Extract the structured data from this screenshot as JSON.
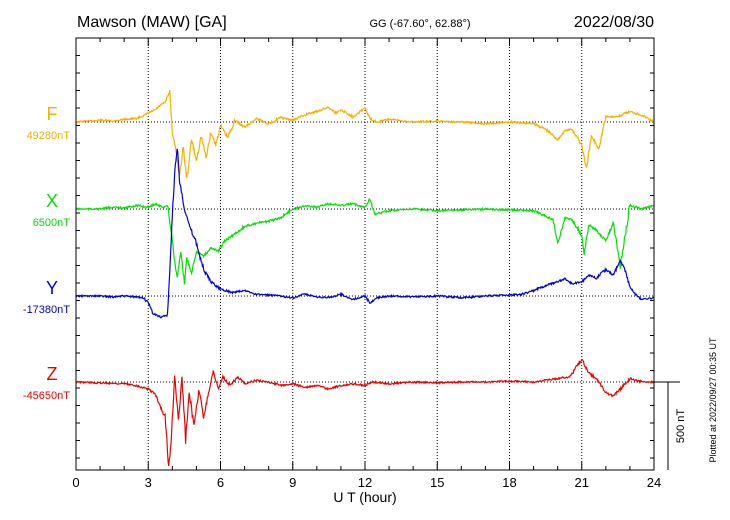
{
  "header": {
    "station": "Mawson (MAW)  [GA]",
    "coords": "GG (-67.60°,  62.88°)",
    "date": "2022/08/30"
  },
  "footer": {
    "plotted": "Plotted at 2022/09/27 00:35 UT"
  },
  "chart_data": {
    "type": "line",
    "xlabel": "U T (hour)",
    "xlim": [
      0,
      24
    ],
    "xticks": [
      "0",
      "3",
      "6",
      "9",
      "12",
      "15",
      "18",
      "21",
      "24"
    ],
    "grid": true,
    "scale_bar": {
      "label": "500 nT",
      "value_nT": 500
    },
    "series": [
      {
        "name": "F",
        "baseline_label": "49280nT",
        "baseline_nT": 49280,
        "color": "#f5b000",
        "points": [
          [
            0,
            0
          ],
          [
            0.5,
            -5
          ],
          [
            1,
            -10
          ],
          [
            1.5,
            -5
          ],
          [
            2,
            -15
          ],
          [
            2.5,
            -20
          ],
          [
            2.8,
            -35
          ],
          [
            3,
            -50
          ],
          [
            3.3,
            -70
          ],
          [
            3.5,
            -95
          ],
          [
            3.7,
            -110
          ],
          [
            3.9,
            -175
          ],
          [
            4.0,
            60
          ],
          [
            4.15,
            160
          ],
          [
            4.3,
            310
          ],
          [
            4.45,
            140
          ],
          [
            4.6,
            330
          ],
          [
            4.8,
            100
          ],
          [
            5.0,
            220
          ],
          [
            5.2,
            80
          ],
          [
            5.4,
            200
          ],
          [
            5.6,
            60
          ],
          [
            5.8,
            130
          ],
          [
            6.0,
            20
          ],
          [
            6.3,
            90
          ],
          [
            6.6,
            -10
          ],
          [
            7,
            30
          ],
          [
            7.5,
            -20
          ],
          [
            8,
            10
          ],
          [
            8.5,
            -25
          ],
          [
            9,
            -10
          ],
          [
            9.5,
            -40
          ],
          [
            10,
            -60
          ],
          [
            10.5,
            -85
          ],
          [
            10.8,
            -50
          ],
          [
            11,
            -70
          ],
          [
            11.5,
            -30
          ],
          [
            12,
            -80
          ],
          [
            12.2,
            -20
          ],
          [
            12.5,
            0
          ],
          [
            13,
            -15
          ],
          [
            14,
            0
          ],
          [
            15,
            -5
          ],
          [
            16,
            0
          ],
          [
            17,
            10
          ],
          [
            18,
            0
          ],
          [
            19,
            10
          ],
          [
            19.5,
            40
          ],
          [
            20,
            100
          ],
          [
            20.3,
            50
          ],
          [
            20.6,
            40
          ],
          [
            21,
            130
          ],
          [
            21.2,
            270
          ],
          [
            21.4,
            80
          ],
          [
            21.7,
            150
          ],
          [
            22,
            -30
          ],
          [
            22.5,
            -30
          ],
          [
            23,
            -60
          ],
          [
            23.5,
            -40
          ],
          [
            24,
            0
          ]
        ]
      },
      {
        "name": "X",
        "baseline_label": "6500nT",
        "baseline_nT": 6500,
        "color": "#00e000",
        "points": [
          [
            0,
            0
          ],
          [
            1,
            0
          ],
          [
            1.5,
            -10
          ],
          [
            2,
            -5
          ],
          [
            2.5,
            -20
          ],
          [
            3,
            -10
          ],
          [
            3.3,
            -30
          ],
          [
            3.6,
            -10
          ],
          [
            3.8,
            -20
          ],
          [
            4.0,
            170
          ],
          [
            4.1,
            300
          ],
          [
            4.2,
            390
          ],
          [
            4.35,
            250
          ],
          [
            4.5,
            420
          ],
          [
            4.6,
            280
          ],
          [
            4.8,
            360
          ],
          [
            5.0,
            240
          ],
          [
            5.3,
            270
          ],
          [
            5.6,
            220
          ],
          [
            5.9,
            240
          ],
          [
            6.2,
            180
          ],
          [
            6.5,
            150
          ],
          [
            7,
            100
          ],
          [
            7.5,
            80
          ],
          [
            8,
            70
          ],
          [
            8.5,
            50
          ],
          [
            9,
            0
          ],
          [
            9.5,
            -20
          ],
          [
            10,
            -10
          ],
          [
            10.5,
            -30
          ],
          [
            11,
            -20
          ],
          [
            11.5,
            -30
          ],
          [
            12,
            -10
          ],
          [
            12.2,
            -60
          ],
          [
            12.4,
            30
          ],
          [
            13,
            10
          ],
          [
            14,
            0
          ],
          [
            15,
            10
          ],
          [
            16,
            5
          ],
          [
            17,
            0
          ],
          [
            18,
            5
          ],
          [
            19,
            10
          ],
          [
            19.5,
            40
          ],
          [
            19.8,
            60
          ],
          [
            20,
            200
          ],
          [
            20.3,
            50
          ],
          [
            20.6,
            60
          ],
          [
            21,
            150
          ],
          [
            21.1,
            250
          ],
          [
            21.3,
            90
          ],
          [
            21.6,
            120
          ],
          [
            22,
            180
          ],
          [
            22.3,
            80
          ],
          [
            22.6,
            320
          ],
          [
            23,
            -20
          ],
          [
            23.5,
            0
          ],
          [
            24,
            -20
          ]
        ]
      },
      {
        "name": "Y",
        "baseline_label": "-17380nT",
        "baseline_nT": -17380,
        "color": "#0000dd",
        "points": [
          [
            0,
            0
          ],
          [
            1,
            0
          ],
          [
            1.5,
            5
          ],
          [
            2,
            0
          ],
          [
            2.8,
            10
          ],
          [
            3,
            40
          ],
          [
            3.2,
            100
          ],
          [
            3.5,
            120
          ],
          [
            3.8,
            110
          ],
          [
            3.9,
            -150
          ],
          [
            4.0,
            -450
          ],
          [
            4.1,
            -700
          ],
          [
            4.2,
            -850
          ],
          [
            4.3,
            -650
          ],
          [
            4.5,
            -500
          ],
          [
            4.7,
            -400
          ],
          [
            5.0,
            -300
          ],
          [
            5.3,
            -150
          ],
          [
            5.6,
            -80
          ],
          [
            6,
            -40
          ],
          [
            6.5,
            -20
          ],
          [
            7,
            -30
          ],
          [
            7.5,
            -10
          ],
          [
            8,
            -5
          ],
          [
            8.5,
            0
          ],
          [
            9,
            10
          ],
          [
            9.5,
            -10
          ],
          [
            10,
            5
          ],
          [
            10.5,
            10
          ],
          [
            11,
            -10
          ],
          [
            11.5,
            20
          ],
          [
            12,
            0
          ],
          [
            12.2,
            40
          ],
          [
            12.5,
            10
          ],
          [
            13,
            0
          ],
          [
            14,
            5
          ],
          [
            15,
            0
          ],
          [
            16,
            10
          ],
          [
            17,
            0
          ],
          [
            18,
            -5
          ],
          [
            18.5,
            -10
          ],
          [
            19,
            -30
          ],
          [
            19.5,
            -60
          ],
          [
            20,
            -80
          ],
          [
            20.3,
            -100
          ],
          [
            20.6,
            -70
          ],
          [
            21,
            -80
          ],
          [
            21.3,
            -120
          ],
          [
            21.6,
            -100
          ],
          [
            22,
            -150
          ],
          [
            22.3,
            -120
          ],
          [
            22.6,
            -200
          ],
          [
            22.8,
            -150
          ],
          [
            23,
            -50
          ],
          [
            23.3,
            0
          ],
          [
            23.5,
            20
          ],
          [
            24,
            10
          ]
        ]
      },
      {
        "name": "Z",
        "baseline_label": "-45650nT",
        "baseline_nT": -45650,
        "color": "#ee0000",
        "points": [
          [
            0,
            0
          ],
          [
            1,
            5
          ],
          [
            2,
            10
          ],
          [
            2.5,
            20
          ],
          [
            3,
            40
          ],
          [
            3.3,
            70
          ],
          [
            3.5,
            140
          ],
          [
            3.7,
            200
          ],
          [
            3.85,
            480
          ],
          [
            3.95,
            350
          ],
          [
            4.1,
            -50
          ],
          [
            4.25,
            220
          ],
          [
            4.4,
            -20
          ],
          [
            4.55,
            330
          ],
          [
            4.7,
            50
          ],
          [
            4.9,
            260
          ],
          [
            5.1,
            40
          ],
          [
            5.3,
            200
          ],
          [
            5.5,
            60
          ],
          [
            5.7,
            -60
          ],
          [
            5.9,
            40
          ],
          [
            6.1,
            -30
          ],
          [
            6.4,
            20
          ],
          [
            6.7,
            -30
          ],
          [
            7,
            10
          ],
          [
            7.5,
            -10
          ],
          [
            8,
            0
          ],
          [
            8.5,
            20
          ],
          [
            9,
            10
          ],
          [
            9.5,
            30
          ],
          [
            10,
            20
          ],
          [
            10.5,
            40
          ],
          [
            11,
            20
          ],
          [
            11.5,
            10
          ],
          [
            12,
            20
          ],
          [
            12.3,
            0
          ],
          [
            13,
            10
          ],
          [
            14,
            0
          ],
          [
            15,
            5
          ],
          [
            16,
            0
          ],
          [
            17,
            0
          ],
          [
            18,
            -5
          ],
          [
            19,
            0
          ],
          [
            19.5,
            -10
          ],
          [
            20,
            -20
          ],
          [
            20.5,
            -30
          ],
          [
            21,
            -130
          ],
          [
            21.3,
            -50
          ],
          [
            21.6,
            -20
          ],
          [
            22,
            60
          ],
          [
            22.3,
            80
          ],
          [
            22.6,
            40
          ],
          [
            23,
            -20
          ],
          [
            23.5,
            0
          ],
          [
            24,
            0
          ]
        ]
      }
    ]
  }
}
